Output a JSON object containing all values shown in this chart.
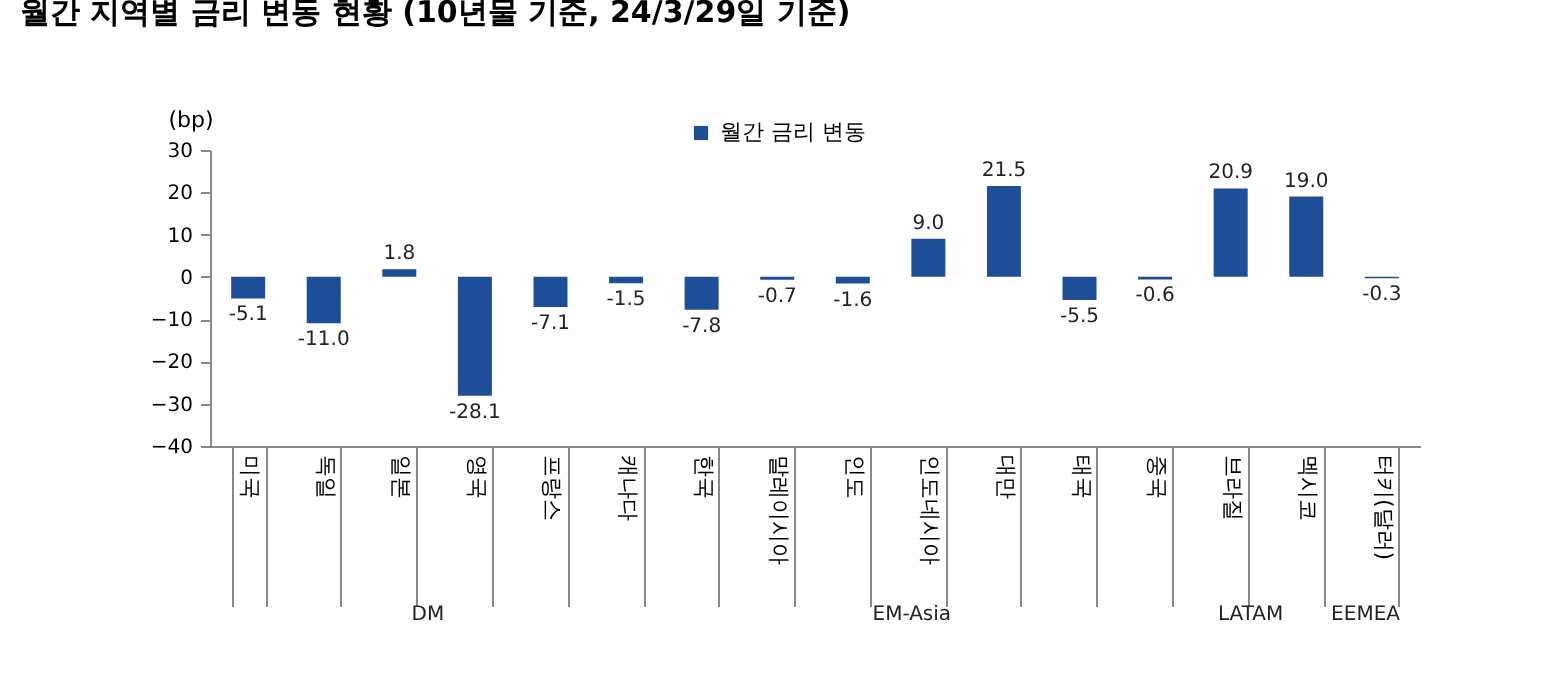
{
  "chart_data": {
    "type": "bar",
    "title": "월간 지역별 금리 변동 현황 (10년물 기준, 24/3/29일 기준)",
    "ylabel": "(bp)",
    "categories": [
      "미국",
      "독일",
      "일본",
      "영국",
      "프랑스",
      "캐나다",
      "한국",
      "말레이시아",
      "인도",
      "인도네시아",
      "대만",
      "태국",
      "중국",
      "브라질",
      "멕시코",
      "터키(달러)"
    ],
    "series": [
      {
        "name": "월간 금리 변동",
        "color": "#1f4e99",
        "values": [
          -5.1,
          -11.0,
          1.8,
          -28.1,
          -7.1,
          -1.5,
          -7.8,
          -0.7,
          -1.6,
          9.0,
          21.5,
          -5.5,
          -0.6,
          20.9,
          19.0,
          -0.3
        ]
      }
    ],
    "value_labels": [
      "-5.1",
      "-11.0",
      "1.8",
      "-28.1",
      "-7.1",
      "-1.5",
      "-7.8",
      "-0.7",
      "-1.6",
      "9.0",
      "21.5",
      "-5.5",
      "-0.6",
      "20.9",
      "19.0",
      "-0.3"
    ],
    "ylim": [
      -40,
      30
    ],
    "yticks": [
      -40,
      -30,
      -20,
      -10,
      0,
      10,
      20,
      30
    ],
    "grid": false,
    "legend": "top",
    "annotations": [
      "DM",
      "EM-Asia",
      "LATAM",
      "EEMEA"
    ]
  }
}
